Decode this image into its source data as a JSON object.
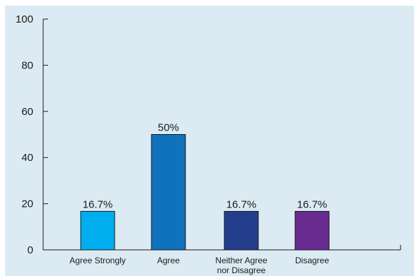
{
  "chart_data": {
    "type": "bar",
    "title": "",
    "xlabel": "",
    "ylabel": "",
    "ylim": [
      0,
      100
    ],
    "yticks": [
      "0",
      "20",
      "40",
      "60",
      "80",
      "100"
    ],
    "ytick_values": [
      0,
      20,
      40,
      60,
      80,
      100
    ],
    "grid": false,
    "background_color": "#dcebf3",
    "categories": [
      [
        "Agree Strongly"
      ],
      [
        "Agree"
      ],
      [
        "Neither Agree",
        "nor Disagree"
      ],
      [
        "Disagree"
      ]
    ],
    "values": [
      16.7,
      50,
      16.7,
      16.7
    ],
    "data_labels": [
      "16.7%",
      "50%",
      "16.7%",
      "16.7%"
    ],
    "colors": [
      "#00aeef",
      "#0e72bc",
      "#233e8b",
      "#682c91"
    ]
  }
}
